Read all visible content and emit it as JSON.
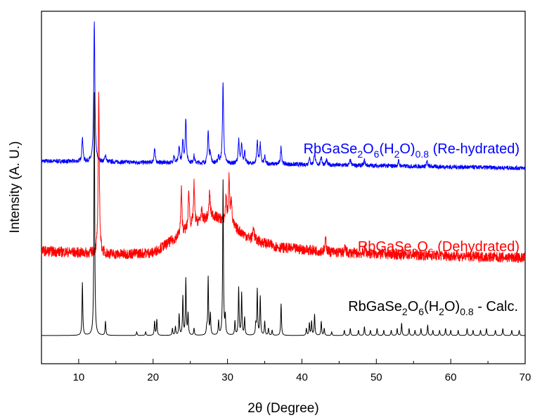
{
  "chart_data": {
    "type": "line",
    "title": "",
    "xlabel": "2θ (Degree)",
    "ylabel": "Intensity (A. U.)",
    "xlim": [
      5,
      70
    ],
    "xticks": [
      10,
      20,
      30,
      40,
      50,
      60,
      70
    ],
    "xtick_labels": [
      "10",
      "20",
      "30",
      "40",
      "50",
      "60",
      "70"
    ],
    "y_tick_labels_shown": false,
    "grid": false,
    "legend": "inline labels beside each trace",
    "series": [
      {
        "name": "RbGaSe2O6(H2O)0.8 (Re-hydrated)",
        "label": {
          "base": "RbGaSe",
          "s1": "2",
          "mid": "O",
          "s2": "6",
          "p1": "(H",
          "s3": "2",
          "p2": "O)",
          "s4": "0.8",
          "tail": " (Re-hydrated)"
        },
        "color": "#0000ff",
        "baseline": [
          [
            5,
            0.575
          ],
          [
            40,
            0.565
          ],
          [
            70,
            0.555
          ]
        ],
        "noise": 0.006,
        "peaks": [
          [
            10.5,
            0.07
          ],
          [
            12.1,
            0.395
          ],
          [
            13.6,
            0.02
          ],
          [
            20.2,
            0.04
          ],
          [
            22.8,
            0.02
          ],
          [
            23.5,
            0.045
          ],
          [
            24.0,
            0.06
          ],
          [
            24.4,
            0.125
          ],
          [
            25.5,
            0.02
          ],
          [
            27.4,
            0.09
          ],
          [
            27.7,
            0.03
          ],
          [
            28.8,
            0.02
          ],
          [
            29.4,
            0.225
          ],
          [
            31.5,
            0.065
          ],
          [
            31.9,
            0.055
          ],
          [
            32.3,
            0.035
          ],
          [
            34.0,
            0.065
          ],
          [
            34.4,
            0.055
          ],
          [
            35.0,
            0.02
          ],
          [
            37.2,
            0.05
          ],
          [
            41.0,
            0.02
          ],
          [
            41.7,
            0.035
          ],
          [
            42.6,
            0.025
          ],
          [
            43.3,
            0.015
          ],
          [
            46.5,
            0.015
          ],
          [
            48.4,
            0.015
          ],
          [
            53.0,
            0.015
          ],
          [
            56.8,
            0.015
          ]
        ]
      },
      {
        "name": "RbGaSe2O6 (Dehydrated)",
        "label": {
          "base": "RbGaSe",
          "s1": "2",
          "mid": "O",
          "s2": "6",
          "tail": " (Dehydrated)"
        },
        "color": "#ff0000",
        "baseline": [
          [
            5,
            0.32
          ],
          [
            15,
            0.31
          ],
          [
            20,
            0.315
          ],
          [
            23,
            0.355
          ],
          [
            26,
            0.4
          ],
          [
            28,
            0.42
          ],
          [
            30,
            0.4
          ],
          [
            33,
            0.355
          ],
          [
            37,
            0.33
          ],
          [
            45,
            0.315
          ],
          [
            70,
            0.3
          ]
        ],
        "noise": 0.015,
        "peaks": [
          [
            12.7,
            0.445
          ],
          [
            23.8,
            0.125
          ],
          [
            24.8,
            0.11
          ],
          [
            25.5,
            0.115
          ],
          [
            26.5,
            0.03
          ],
          [
            27.6,
            0.07
          ],
          [
            29.8,
            0.07
          ],
          [
            30.2,
            0.125
          ],
          [
            30.5,
            0.08
          ],
          [
            33.5,
            0.04
          ],
          [
            43.2,
            0.035
          ],
          [
            45.8,
            0.015
          ],
          [
            48.5,
            0.015
          ]
        ]
      },
      {
        "name": "RbGaSe2O6(H2O)0.8 - Calc.",
        "label": {
          "base": "RbGaSe",
          "s1": "2",
          "mid": "O",
          "s2": "6",
          "p1": "(H",
          "s3": "2",
          "p2": "O)",
          "s4": "0.8",
          "tail": " - Calc."
        },
        "color": "#000000",
        "baseline": [
          [
            5,
            0.08
          ],
          [
            70,
            0.08
          ]
        ],
        "noise": 0.0,
        "peaks": [
          [
            10.5,
            0.15
          ],
          [
            12.1,
            0.69
          ],
          [
            13.6,
            0.04
          ],
          [
            17.8,
            0.01
          ],
          [
            19.0,
            0.01
          ],
          [
            20.2,
            0.04
          ],
          [
            20.5,
            0.045
          ],
          [
            22.6,
            0.02
          ],
          [
            23.0,
            0.025
          ],
          [
            23.5,
            0.06
          ],
          [
            24.0,
            0.11
          ],
          [
            24.4,
            0.16
          ],
          [
            24.7,
            0.06
          ],
          [
            25.5,
            0.02
          ],
          [
            27.2,
            0.02
          ],
          [
            27.4,
            0.165
          ],
          [
            27.7,
            0.06
          ],
          [
            28.8,
            0.04
          ],
          [
            29.4,
            0.44
          ],
          [
            29.7,
            0.05
          ],
          [
            31.0,
            0.04
          ],
          [
            31.5,
            0.135
          ],
          [
            31.9,
            0.12
          ],
          [
            32.3,
            0.05
          ],
          [
            33.8,
            0.03
          ],
          [
            34.0,
            0.13
          ],
          [
            34.4,
            0.11
          ],
          [
            35.0,
            0.04
          ],
          [
            35.5,
            0.02
          ],
          [
            36.0,
            0.015
          ],
          [
            37.2,
            0.09
          ],
          [
            40.6,
            0.02
          ],
          [
            41.0,
            0.035
          ],
          [
            41.3,
            0.04
          ],
          [
            41.7,
            0.06
          ],
          [
            42.6,
            0.04
          ],
          [
            43.0,
            0.02
          ],
          [
            44.0,
            0.01
          ],
          [
            45.7,
            0.015
          ],
          [
            46.5,
            0.02
          ],
          [
            47.6,
            0.015
          ],
          [
            48.4,
            0.025
          ],
          [
            49.2,
            0.015
          ],
          [
            50.1,
            0.02
          ],
          [
            51.0,
            0.015
          ],
          [
            52.0,
            0.015
          ],
          [
            52.8,
            0.02
          ],
          [
            53.4,
            0.035
          ],
          [
            54.4,
            0.02
          ],
          [
            55.2,
            0.015
          ],
          [
            56.0,
            0.02
          ],
          [
            56.9,
            0.03
          ],
          [
            57.6,
            0.015
          ],
          [
            58.5,
            0.015
          ],
          [
            59.3,
            0.02
          ],
          [
            60.0,
            0.015
          ],
          [
            61.0,
            0.015
          ],
          [
            62.2,
            0.02
          ],
          [
            63.0,
            0.015
          ],
          [
            64.0,
            0.015
          ],
          [
            64.8,
            0.02
          ],
          [
            66.0,
            0.015
          ],
          [
            67.0,
            0.02
          ],
          [
            68.2,
            0.015
          ],
          [
            69.2,
            0.015
          ]
        ]
      }
    ]
  }
}
